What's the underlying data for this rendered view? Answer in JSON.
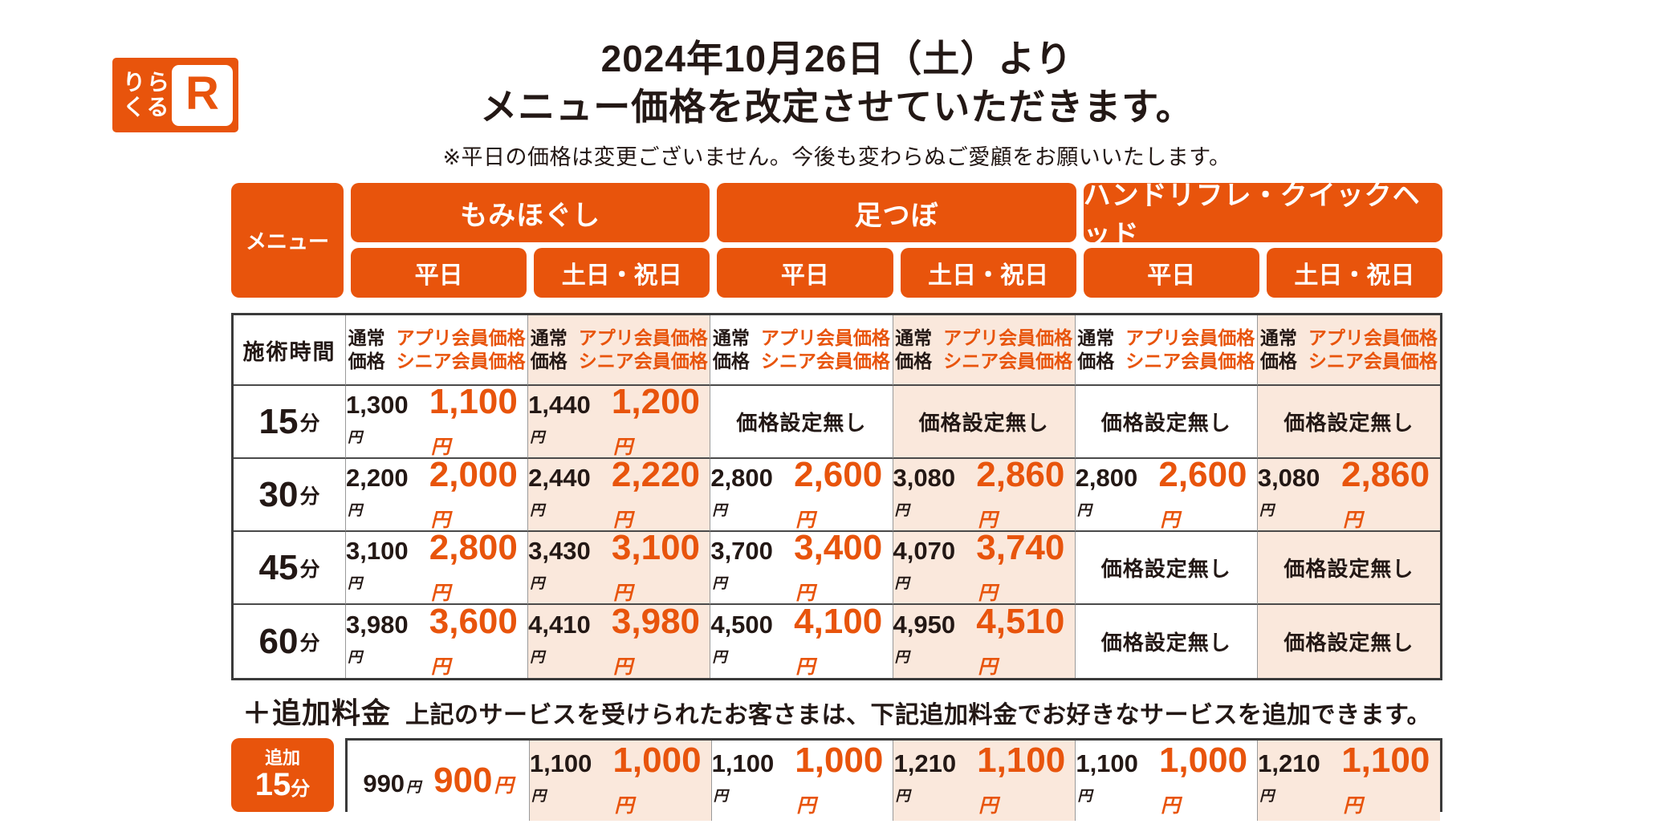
{
  "colors": {
    "accent": "#e8540c",
    "weekend_bg": "#fae8dc",
    "ink": "#231815"
  },
  "logo": {
    "line1": "りら",
    "line2": "くる",
    "mark": "R"
  },
  "title": {
    "line1": "2024年10月26日（土）より",
    "line2": "メニュー価格を改定させていただきます。",
    "note": "※平日の価格は変更ございません。今後も変わらぬご愛顧をお願いいたします。"
  },
  "table": {
    "corner_label": "メニュー",
    "groups": [
      {
        "label": "もみほぐし",
        "cols": [
          "平日",
          "土日・祝日"
        ]
      },
      {
        "label": "足つぼ",
        "cols": [
          "平日",
          "土日・祝日"
        ]
      },
      {
        "label": "ハンドリフレ・クイックヘッド",
        "cols": [
          "平日",
          "土日・祝日"
        ]
      }
    ],
    "time_header": "施術時間",
    "price_header": {
      "normal_line1": "通常",
      "normal_line2": "価格",
      "member_line1": "アプリ会員価格",
      "member_line2": "シニア会員価格"
    },
    "yen": "円",
    "no_price_label": "価格設定無し",
    "rows": [
      {
        "time": "15",
        "unit": "分",
        "cells": [
          {
            "normal": "1,300",
            "member": "1,100"
          },
          {
            "normal": "1,440",
            "member": "1,200"
          },
          {
            "none": true
          },
          {
            "none": true
          },
          {
            "none": true
          },
          {
            "none": true
          }
        ]
      },
      {
        "time": "30",
        "unit": "分",
        "cells": [
          {
            "normal": "2,200",
            "member": "2,000"
          },
          {
            "normal": "2,440",
            "member": "2,220"
          },
          {
            "normal": "2,800",
            "member": "2,600"
          },
          {
            "normal": "3,080",
            "member": "2,860"
          },
          {
            "normal": "2,800",
            "member": "2,600"
          },
          {
            "normal": "3,080",
            "member": "2,860"
          }
        ]
      },
      {
        "time": "45",
        "unit": "分",
        "cells": [
          {
            "normal": "3,100",
            "member": "2,800"
          },
          {
            "normal": "3,430",
            "member": "3,100"
          },
          {
            "normal": "3,700",
            "member": "3,400"
          },
          {
            "normal": "4,070",
            "member": "3,740"
          },
          {
            "none": true
          },
          {
            "none": true
          }
        ]
      },
      {
        "time": "60",
        "unit": "分",
        "cells": [
          {
            "normal": "3,980",
            "member": "3,600"
          },
          {
            "normal": "4,410",
            "member": "3,980"
          },
          {
            "normal": "4,500",
            "member": "4,100"
          },
          {
            "normal": "4,950",
            "member": "4,510"
          },
          {
            "none": true
          },
          {
            "none": true
          }
        ]
      }
    ]
  },
  "addon": {
    "heading": "＋追加料金",
    "description": "上記のサービスを受けられたお客さまは、下記追加料金でお好きなサービスを追加できます。",
    "badge_line1": "追加",
    "badge_time": "15",
    "badge_unit": "分",
    "cells": [
      {
        "normal": "990",
        "member": "900"
      },
      {
        "normal": "1,100",
        "member": "1,000"
      },
      {
        "normal": "1,100",
        "member": "1,000"
      },
      {
        "normal": "1,210",
        "member": "1,100"
      },
      {
        "normal": "1,100",
        "member": "1,000"
      },
      {
        "normal": "1,210",
        "member": "1,100"
      }
    ]
  }
}
